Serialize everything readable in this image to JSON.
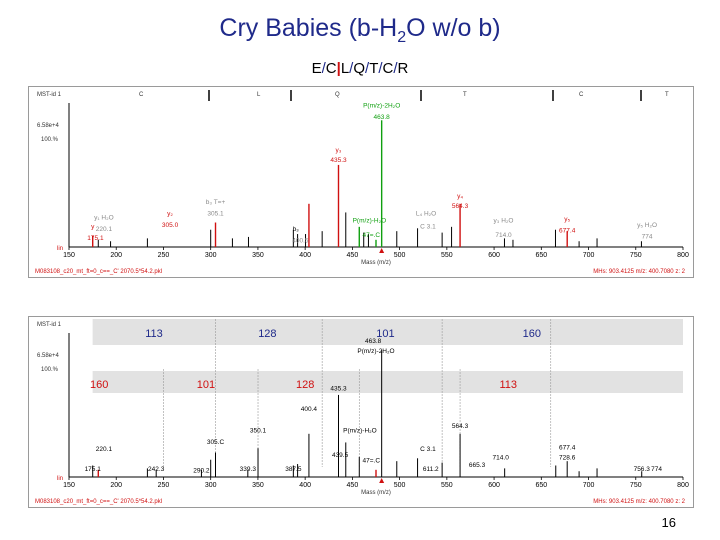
{
  "slide": {
    "title_pre": "Cry Babies (b-H",
    "title_sub": "2",
    "title_post": "O  w/o b)",
    "seq_letters": [
      "E",
      "C",
      "L",
      "Q",
      "T",
      "C",
      "R"
    ],
    "page_number": "16"
  },
  "colors": {
    "title": "#1f2a8a",
    "red": "#d01010",
    "green": "#10a010",
    "peak": "#000000",
    "grey": "#bfbfbf"
  },
  "chart_data": [
    {
      "type": "bar",
      "panel": "top",
      "header_left": "MST-id  1",
      "int_label": "6.58e+4",
      "pct_label": "100.%",
      "base_label": "lin",
      "seq_header": [
        "C",
        "L",
        "Q",
        "T",
        "C",
        "T"
      ],
      "x_ticks": [
        "150",
        "200",
        "250",
        "300",
        "350",
        "400",
        "450",
        "500",
        "550",
        "600",
        "650",
        "700",
        "750",
        "800"
      ],
      "xlim": [
        150,
        800
      ],
      "ylim": [
        0,
        100
      ],
      "xlabel": "Mass (m/z)",
      "footer_left": "M083108_c20_mt_ft=0_c==_C' 2070.5*54.2.pkl",
      "footer_right": "MHs: 903.4125  m/z: 400.7080  z: 2",
      "peaks": [
        {
          "mz": 175.1,
          "intensity": 8,
          "color": "red"
        },
        {
          "mz": 181,
          "intensity": 5,
          "color": "black"
        },
        {
          "mz": 194,
          "intensity": 4,
          "color": "black"
        },
        {
          "mz": 233,
          "intensity": 6,
          "color": "black"
        },
        {
          "mz": 300,
          "intensity": 12,
          "color": "black"
        },
        {
          "mz": 305.1,
          "intensity": 17,
          "color": "red"
        },
        {
          "mz": 323,
          "intensity": 6,
          "color": "black"
        },
        {
          "mz": 340,
          "intensity": 7,
          "color": "black"
        },
        {
          "mz": 387.5,
          "intensity": 12,
          "color": "black"
        },
        {
          "mz": 392,
          "intensity": 9,
          "color": "black"
        },
        {
          "mz": 400.4,
          "intensity": 9,
          "color": "black"
        },
        {
          "mz": 404,
          "intensity": 30,
          "color": "red"
        },
        {
          "mz": 418,
          "intensity": 11,
          "color": "black"
        },
        {
          "mz": 435.3,
          "intensity": 57,
          "color": "red"
        },
        {
          "mz": 443,
          "intensity": 24,
          "color": "black"
        },
        {
          "mz": 457.3,
          "intensity": 14,
          "color": "green"
        },
        {
          "mz": 462,
          "intensity": 10,
          "color": "black"
        },
        {
          "mz": 467,
          "intensity": 9,
          "color": "black"
        },
        {
          "mz": 475,
          "intensity": 5,
          "color": "green"
        },
        {
          "mz": 481,
          "intensity": 88,
          "color": "green"
        },
        {
          "mz": 497,
          "intensity": 11,
          "color": "black"
        },
        {
          "mz": 519,
          "intensity": 13,
          "color": "black"
        },
        {
          "mz": 545,
          "intensity": 10,
          "color": "black"
        },
        {
          "mz": 555,
          "intensity": 14,
          "color": "black"
        },
        {
          "mz": 564,
          "intensity": 30,
          "color": "red"
        },
        {
          "mz": 611,
          "intensity": 6,
          "color": "black"
        },
        {
          "mz": 620,
          "intensity": 5,
          "color": "black"
        },
        {
          "mz": 665,
          "intensity": 12,
          "color": "black"
        },
        {
          "mz": 677.4,
          "intensity": 11,
          "color": "red"
        },
        {
          "mz": 690,
          "intensity": 4,
          "color": "black"
        },
        {
          "mz": 709,
          "intensity": 6,
          "color": "black"
        },
        {
          "mz": 756,
          "intensity": 4,
          "color": "black"
        }
      ],
      "annotations": [
        {
          "text": "P(m/z)-2H₂O",
          "mz": 481,
          "y": 97,
          "color": "green"
        },
        {
          "text": "463.8",
          "mz": 481,
          "y": 89,
          "color": "green"
        },
        {
          "text": "y₃",
          "mz": 435.3,
          "y": 66,
          "color": "red"
        },
        {
          "text": "435.3",
          "mz": 435.3,
          "y": 59,
          "color": "red"
        },
        {
          "text": "y₄",
          "mz": 564,
          "y": 34,
          "color": "red"
        },
        {
          "text": "564.3",
          "mz": 564,
          "y": 27,
          "color": "red"
        },
        {
          "text": "b₃ T=+",
          "mz": 305.1,
          "y": 30,
          "color": "grey"
        },
        {
          "text": "305.1",
          "mz": 305.1,
          "y": 22,
          "color": "grey"
        },
        {
          "text": "y₂",
          "mz": 257,
          "y": 22,
          "color": "red"
        },
        {
          "text": "305.0",
          "mz": 257,
          "y": 14,
          "color": "red"
        },
        {
          "text": "y₁ H₂O",
          "mz": 187,
          "y": 19,
          "color": "grey"
        },
        {
          "text": "220.1",
          "mz": 187,
          "y": 11,
          "color": "grey"
        },
        {
          "text": "y",
          "mz": 175.1,
          "y": 13,
          "color": "red"
        },
        {
          "text": "175.1",
          "mz": 178,
          "y": 5,
          "color": "red"
        },
        {
          "text": "b₃",
          "mz": 390,
          "y": 11,
          "color": "black"
        },
        {
          "text": "400.5",
          "mz": 395,
          "y": 3,
          "color": "grey"
        },
        {
          "text": "P(m/z)-H₂O",
          "mz": 468,
          "y": 17,
          "color": "green"
        },
        {
          "text": "47=.C",
          "mz": 470,
          "y": 7,
          "color": "green"
        },
        {
          "text": "L₄ H₂O",
          "mz": 528,
          "y": 22,
          "color": "grey"
        },
        {
          "text": "C 3.1",
          "mz": 530,
          "y": 13,
          "color": "grey"
        },
        {
          "text": "y₃ H₂O",
          "mz": 610,
          "y": 17,
          "color": "grey"
        },
        {
          "text": "714.0",
          "mz": 610,
          "y": 7,
          "color": "grey"
        },
        {
          "text": "y₅",
          "mz": 677.4,
          "y": 18,
          "color": "red"
        },
        {
          "text": "677.4",
          "mz": 677.4,
          "y": 10,
          "color": "red"
        },
        {
          "text": "y₅ H₂O",
          "mz": 762,
          "y": 14,
          "color": "grey"
        },
        {
          "text": "774",
          "mz": 762,
          "y": 6,
          "color": "grey"
        }
      ]
    },
    {
      "type": "bar",
      "panel": "bottom",
      "header_left": "MST-id  1",
      "int_label": "6.58e+4",
      "pct_label": "100.%",
      "base_label": "lin",
      "seq_header": [],
      "x_ticks": [
        "150",
        "200",
        "250",
        "300",
        "350",
        "400",
        "450",
        "500",
        "550",
        "600",
        "650",
        "700",
        "750",
        "800"
      ],
      "xlim": [
        150,
        800
      ],
      "ylim": [
        0,
        100
      ],
      "xlabel": "Mass (m/z)",
      "footer_left": "M083108_c20_mt_ft=0_c==_C' 2070.5*54.2.pkl",
      "footer_right": "MHs: 903.4125  m/z: 400.7080  z: 2",
      "top_gaps": [
        "113",
        "128",
        "101",
        "160"
      ],
      "mid_gaps": [
        "160",
        "101",
        "128",
        "113"
      ],
      "peaks": [
        {
          "mz": 175.1,
          "intensity": 8,
          "color": "black"
        },
        {
          "mz": 181,
          "intensity": 5,
          "color": "red"
        },
        {
          "mz": 233,
          "intensity": 6,
          "color": "black"
        },
        {
          "mz": 242.3,
          "intensity": 5,
          "color": "black"
        },
        {
          "mz": 290.2,
          "intensity": 5,
          "color": "black"
        },
        {
          "mz": 300,
          "intensity": 12,
          "color": "black"
        },
        {
          "mz": 305.1,
          "intensity": 17,
          "color": "black"
        },
        {
          "mz": 339.3,
          "intensity": 5,
          "color": "black"
        },
        {
          "mz": 350.1,
          "intensity": 20,
          "color": "black"
        },
        {
          "mz": 387.5,
          "intensity": 8,
          "color": "black"
        },
        {
          "mz": 392,
          "intensity": 9,
          "color": "black"
        },
        {
          "mz": 404,
          "intensity": 30,
          "color": "black"
        },
        {
          "mz": 435.3,
          "intensity": 57,
          "color": "black"
        },
        {
          "mz": 443,
          "intensity": 24,
          "color": "black"
        },
        {
          "mz": 457.3,
          "intensity": 14,
          "color": "black"
        },
        {
          "mz": 475,
          "intensity": 5,
          "color": "red"
        },
        {
          "mz": 481,
          "intensity": 88,
          "color": "black"
        },
        {
          "mz": 497,
          "intensity": 11,
          "color": "black"
        },
        {
          "mz": 519,
          "intensity": 13,
          "color": "black"
        },
        {
          "mz": 545,
          "intensity": 10,
          "color": "black"
        },
        {
          "mz": 564,
          "intensity": 30,
          "color": "black"
        },
        {
          "mz": 611.2,
          "intensity": 6,
          "color": "black"
        },
        {
          "mz": 665.3,
          "intensity": 8,
          "color": "black"
        },
        {
          "mz": 677.4,
          "intensity": 11,
          "color": "black"
        },
        {
          "mz": 690,
          "intensity": 4,
          "color": "black"
        },
        {
          "mz": 709,
          "intensity": 6,
          "color": "black"
        },
        {
          "mz": 756.3,
          "intensity": 4,
          "color": "black"
        }
      ],
      "annotations": [
        {
          "text": "463.8",
          "mz": 472,
          "y": 93,
          "color": "black"
        },
        {
          "text": "P(m/z)-2H₂O",
          "mz": 475,
          "y": 86,
          "color": "black"
        },
        {
          "text": "435.3",
          "mz": 435.3,
          "y": 60,
          "color": "black"
        },
        {
          "text": "400.4",
          "mz": 404,
          "y": 46,
          "color": "black"
        },
        {
          "text": "P(m/z)-H₂O",
          "mz": 458,
          "y": 31,
          "color": "black"
        },
        {
          "text": "564.3",
          "mz": 564,
          "y": 34,
          "color": "black"
        },
        {
          "text": "350.1",
          "mz": 350.1,
          "y": 31,
          "color": "black"
        },
        {
          "text": "305.C",
          "mz": 305.1,
          "y": 23,
          "color": "black"
        },
        {
          "text": "220.1",
          "mz": 187,
          "y": 18,
          "color": "black"
        },
        {
          "text": "C 3.1",
          "mz": 530,
          "y": 18,
          "color": "black"
        },
        {
          "text": "714.0",
          "mz": 607,
          "y": 12,
          "color": "black"
        },
        {
          "text": "677.4",
          "mz": 677.4,
          "y": 19,
          "color": "black"
        },
        {
          "text": "728.6",
          "mz": 677.4,
          "y": 12,
          "color": "black"
        },
        {
          "text": "47=.C",
          "mz": 470,
          "y": 10,
          "color": "black"
        },
        {
          "text": "175.1",
          "mz": 175.1,
          "y": 4,
          "color": "black"
        },
        {
          "text": "242.3",
          "mz": 242.3,
          "y": 4,
          "color": "black"
        },
        {
          "text": "290.2",
          "mz": 290.2,
          "y": 3,
          "color": "black"
        },
        {
          "text": "339.3",
          "mz": 339.3,
          "y": 4,
          "color": "black"
        },
        {
          "text": "387.5",
          "mz": 387.5,
          "y": 4,
          "color": "black"
        },
        {
          "text": "439.5",
          "mz": 437,
          "y": 14,
          "color": "black"
        },
        {
          "text": "611.2",
          "mz": 533,
          "y": 4,
          "color": "black"
        },
        {
          "text": "665.3",
          "mz": 582,
          "y": 7,
          "color": "black"
        },
        {
          "text": "756.3",
          "mz": 756.3,
          "y": 4,
          "color": "black"
        },
        {
          "text": "774",
          "mz": 772,
          "y": 4,
          "color": "black"
        }
      ]
    }
  ]
}
